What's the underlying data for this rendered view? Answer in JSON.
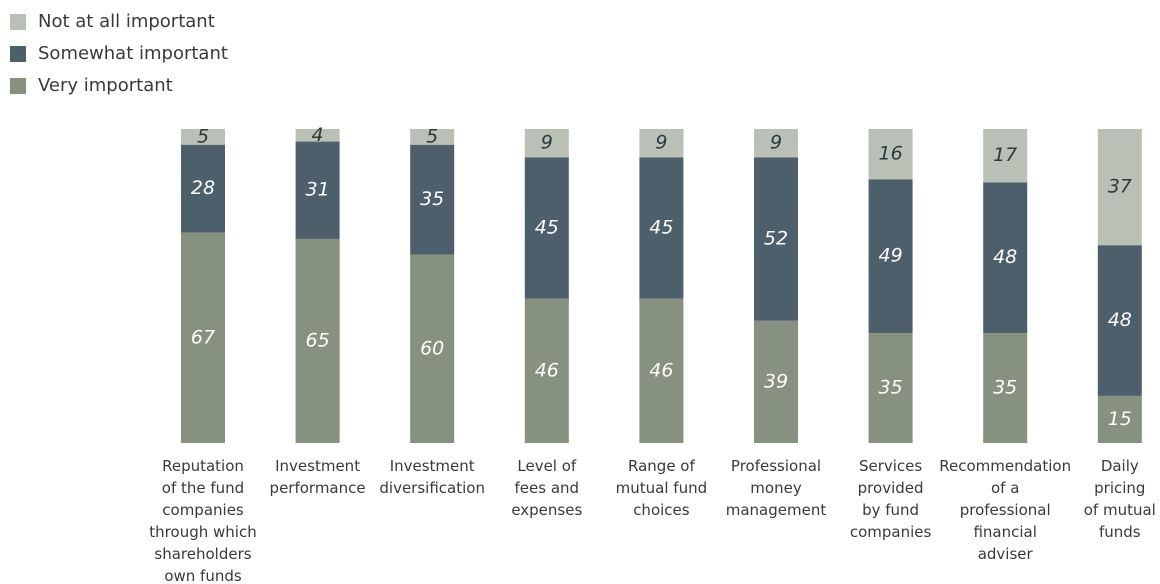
{
  "chart_data": {
    "type": "stacked_bar",
    "categories": [
      "Reputation\nof the fund\ncompanies\nthrough which\nshareholders\nown funds",
      "Investment\nperformance",
      "Investment\ndiversification",
      "Level of\nfees and\nexpenses",
      "Range of\nmutual fund\nchoices",
      "Professional\nmoney\nmanagement",
      "Services\nprovided\nby fund\ncompanies",
      "Recommendation\nof a\nprofessional\nfinancial\nadviser",
      "Daily\npricing\nof mutual\nfunds"
    ],
    "series": [
      {
        "name": "Not at all important",
        "color": "#b9c0b6",
        "values": [
          5,
          4,
          5,
          9,
          9,
          9,
          16,
          17,
          37
        ]
      },
      {
        "name": "Somewhat important",
        "color": "#4d5f6a",
        "values": [
          28,
          31,
          35,
          45,
          45,
          52,
          49,
          48,
          48
        ]
      },
      {
        "name": "Very important",
        "color": "#87917f",
        "values": [
          67,
          65,
          60,
          46,
          46,
          39,
          35,
          35,
          15
        ]
      }
    ],
    "ylim": [
      0,
      100
    ],
    "legend": "top-left"
  }
}
